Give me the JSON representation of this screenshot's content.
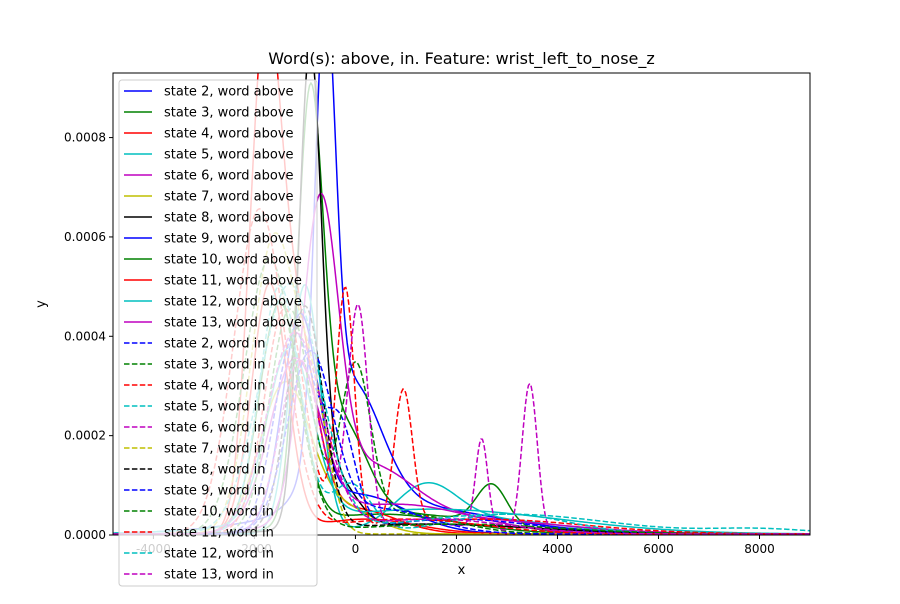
{
  "chart_data": {
    "type": "line",
    "title": "Word(s): above, in. Feature: wrist_left_to_nose_z",
    "xlabel": "x",
    "ylabel": "y",
    "xlim": [
      -4800,
      9000
    ],
    "ylim": [
      0,
      0.00093
    ],
    "x_ticks": [
      {
        "value": -4000,
        "label": "-4000"
      },
      {
        "value": -2000,
        "label": "-2000"
      },
      {
        "value": 0,
        "label": "0"
      },
      {
        "value": 2000,
        "label": "2000"
      },
      {
        "value": 4000,
        "label": "4000"
      },
      {
        "value": 6000,
        "label": "6000"
      },
      {
        "value": 8000,
        "label": "8000"
      }
    ],
    "y_ticks": [
      {
        "value": 0,
        "label": "0.0000"
      },
      {
        "value": 0.0002,
        "label": "0.0002"
      },
      {
        "value": 0.0004,
        "label": "0.0004"
      },
      {
        "value": 0.0006,
        "label": "0.0006"
      },
      {
        "value": 0.0008,
        "label": "0.0008"
      }
    ],
    "legend_position": "upper-left",
    "grid": false,
    "series": [
      {
        "name": "state 2, word above",
        "color": "#0000ff",
        "dash": "solid",
        "components": [
          [
            0.00087,
            -600,
            200
          ],
          [
            0.00025,
            -100,
            600
          ],
          [
            6e-05,
            600,
            2000
          ]
        ]
      },
      {
        "name": "state 3, word above",
        "color": "#008000",
        "dash": "solid",
        "components": [
          [
            0.00079,
            -900,
            250
          ],
          [
            0.0002,
            -300,
            500
          ],
          [
            8e-05,
            2700,
            300
          ],
          [
            4e-05,
            1000,
            1500
          ]
        ]
      },
      {
        "name": "state 4, word above",
        "color": "#ff0000",
        "dash": "solid",
        "components": [
          [
            0.00093,
            -1800,
            300
          ],
          [
            0.0004,
            -1200,
            400
          ],
          [
            5e-05,
            0,
            800
          ]
        ]
      },
      {
        "name": "state 5, word above",
        "color": "#00bfbf",
        "dash": "solid",
        "components": [
          [
            0.0005,
            -1000,
            300
          ],
          [
            8e-05,
            1400,
            600
          ],
          [
            3e-05,
            2500,
            1500
          ]
        ]
      },
      {
        "name": "state 6, word above",
        "color": "#bf00bf",
        "dash": "solid",
        "components": [
          [
            0.0006,
            -700,
            350
          ],
          [
            0.00012,
            200,
            900
          ],
          [
            3e-05,
            2000,
            2000
          ]
        ]
      },
      {
        "name": "state 7, word above",
        "color": "#bfbf00",
        "dash": "solid",
        "components": [
          [
            0.0003,
            -1400,
            500
          ],
          [
            5e-05,
            -200,
            600
          ]
        ]
      },
      {
        "name": "state 8, word above",
        "color": "#000000",
        "dash": "solid",
        "components": [
          [
            0.00093,
            -900,
            220
          ],
          [
            0.0001,
            -400,
            400
          ],
          [
            2e-05,
            1500,
            2000
          ]
        ]
      },
      {
        "name": "state 9, word above",
        "color": "#0000ff",
        "dash": "solid",
        "components": [
          [
            0.0004,
            -1100,
            350
          ],
          [
            8e-05,
            0,
            1000
          ]
        ]
      },
      {
        "name": "state 10, word above",
        "color": "#008000",
        "dash": "solid",
        "components": [
          [
            0.00045,
            -1500,
            400
          ],
          [
            4e-05,
            500,
            1500
          ]
        ]
      },
      {
        "name": "state 11, word above",
        "color": "#ff0000",
        "dash": "solid",
        "components": [
          [
            0.0005,
            -1700,
            350
          ],
          [
            3e-05,
            200,
            1000
          ]
        ]
      },
      {
        "name": "state 12, word above",
        "color": "#00bfbf",
        "dash": "solid",
        "components": [
          [
            0.00035,
            -1300,
            450
          ],
          [
            5e-05,
            1500,
            2500
          ]
        ]
      },
      {
        "name": "state 13, word above",
        "color": "#bf00bf",
        "dash": "solid",
        "components": [
          [
            0.00033,
            -1200,
            500
          ],
          [
            6e-05,
            800,
            1500
          ]
        ]
      },
      {
        "name": "state 2, word in",
        "color": "#0000ff",
        "dash": "dashed",
        "components": [
          [
            0.0004,
            -1200,
            400
          ],
          [
            0.0002,
            -300,
            300
          ],
          [
            3e-05,
            2000,
            1500
          ]
        ]
      },
      {
        "name": "state 3, word in",
        "color": "#008000",
        "dash": "dashed",
        "components": [
          [
            0.00045,
            -1300,
            400
          ],
          [
            0.00032,
            0,
            300
          ],
          [
            4e-05,
            1000,
            1000
          ]
        ]
      },
      {
        "name": "state 4, word in",
        "color": "#ff0000",
        "dash": "dashed",
        "components": [
          [
            0.00045,
            -1400,
            400
          ],
          [
            0.00048,
            -200,
            180
          ],
          [
            0.00027,
            950,
            180
          ],
          [
            3e-05,
            2500,
            2000
          ]
        ]
      },
      {
        "name": "state 5, word in",
        "color": "#00bfbf",
        "dash": "dashed",
        "components": [
          [
            0.0005,
            -1500,
            400
          ],
          [
            0.0001,
            -100,
            400
          ],
          [
            4e-05,
            3000,
            1200
          ]
        ]
      },
      {
        "name": "state 6, word in",
        "color": "#bf00bf",
        "dash": "dashed",
        "components": [
          [
            0.00035,
            -1100,
            400
          ],
          [
            0.00045,
            50,
            200
          ],
          [
            0.00018,
            2500,
            120
          ],
          [
            0.0003,
            3450,
            150
          ],
          [
            2e-05,
            1500,
            1000
          ]
        ]
      },
      {
        "name": "state 7, word in",
        "color": "#bfbf00",
        "dash": "dashed",
        "components": [
          [
            0.0006,
            -1600,
            450
          ],
          [
            0.0002,
            -800,
            300
          ]
        ]
      },
      {
        "name": "state 8, word in",
        "color": "#000000",
        "dash": "dashed",
        "components": [
          [
            0.00045,
            -1000,
            350
          ],
          [
            2e-05,
            1500,
            2000
          ]
        ]
      },
      {
        "name": "state 9, word in",
        "color": "#0000ff",
        "dash": "dashed",
        "components": [
          [
            0.00035,
            -900,
            450
          ],
          [
            5e-05,
            500,
            1000
          ]
        ]
      },
      {
        "name": "state 10, word in",
        "color": "#008000",
        "dash": "dashed",
        "components": [
          [
            0.00055,
            -1700,
            500
          ],
          [
            2e-05,
            2000,
            2000
          ]
        ]
      },
      {
        "name": "state 11, word in",
        "color": "#ff0000",
        "dash": "dashed",
        "components": [
          [
            0.00065,
            -1900,
            500
          ],
          [
            3e-05,
            1000,
            1500
          ]
        ]
      },
      {
        "name": "state 12, word in",
        "color": "#00bfbf",
        "dash": "dashed",
        "components": [
          [
            0.0005,
            -1300,
            600
          ],
          [
            4e-05,
            3000,
            2000
          ],
          [
            1e-05,
            8000,
            1000
          ]
        ]
      },
      {
        "name": "state 13, word in",
        "color": "#bf00bf",
        "dash": "dashed",
        "components": [
          [
            0.0004,
            -1200,
            550
          ],
          [
            3e-05,
            1500,
            1500
          ]
        ]
      }
    ]
  }
}
